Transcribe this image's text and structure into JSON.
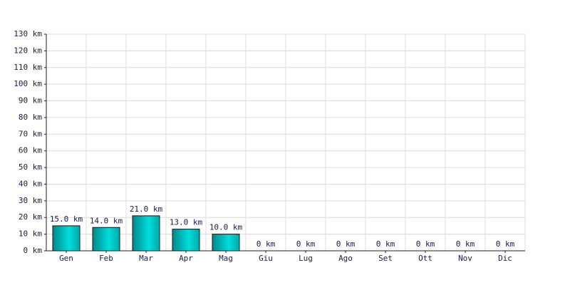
{
  "chart_data": {
    "type": "bar",
    "categories": [
      "Gen",
      "Feb",
      "Mar",
      "Apr",
      "Mag",
      "Giu",
      "Lug",
      "Ago",
      "Set",
      "Ott",
      "Nov",
      "Dic"
    ],
    "values": [
      15,
      14,
      21,
      13,
      10,
      0,
      0,
      0,
      0,
      0,
      0,
      0
    ],
    "value_labels": [
      "15.0 km",
      "14.0 km",
      "21.0 km",
      "13.0 km",
      "10.0 km",
      "0 km",
      "0 km",
      "0 km",
      "0 km",
      "0 km",
      "0 km",
      "0 km"
    ],
    "color": "#00dcdc",
    "ylim": [
      0,
      130
    ],
    "yticks": [
      {
        "value": 0,
        "label": "0 km"
      },
      {
        "value": 10,
        "label": "10 km"
      },
      {
        "value": 20,
        "label": "20 km"
      },
      {
        "value": 30,
        "label": "30 km"
      },
      {
        "value": 40,
        "label": "40 km"
      },
      {
        "value": 50,
        "label": "50 km"
      },
      {
        "value": 60,
        "label": "60 km"
      },
      {
        "value": 70,
        "label": "70 km"
      },
      {
        "value": 80,
        "label": "80 km"
      },
      {
        "value": 90,
        "label": "90 km"
      },
      {
        "value": 100,
        "label": "100 km"
      },
      {
        "value": 110,
        "label": "110 km"
      },
      {
        "value": 120,
        "label": "120 km"
      },
      {
        "value": 130,
        "label": "130 km"
      }
    ],
    "grid": true
  }
}
